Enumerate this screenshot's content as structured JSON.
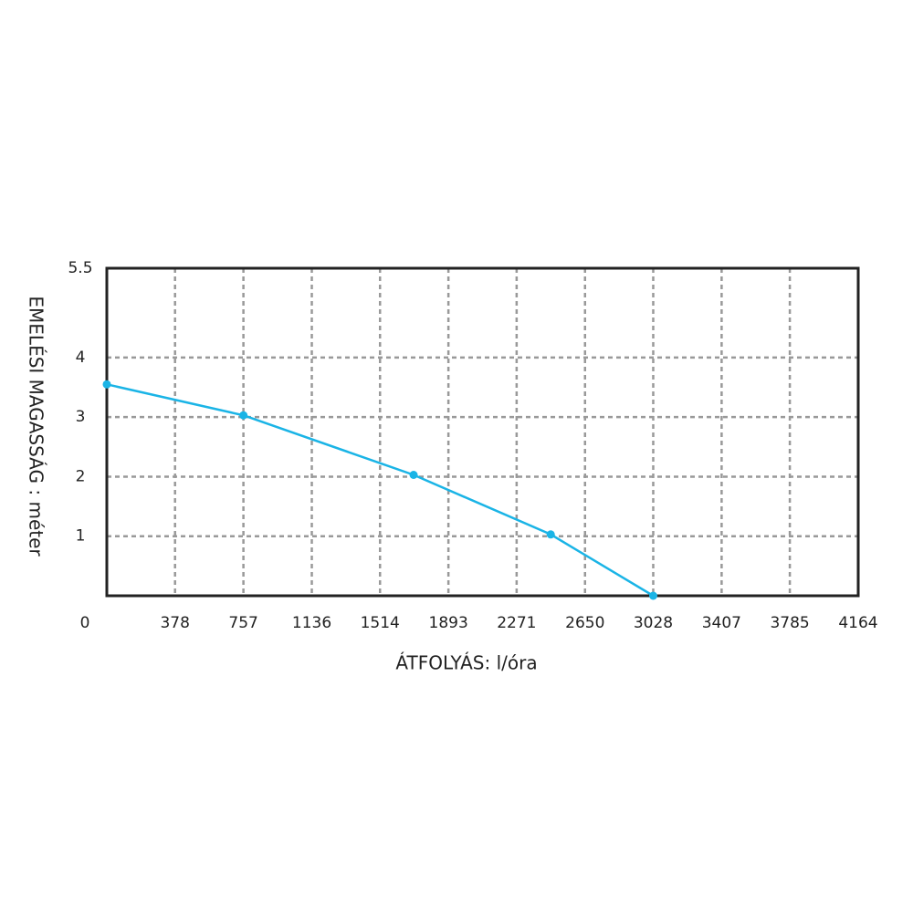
{
  "chart_data": {
    "type": "line",
    "x_label": "ÁTFOLYÁS: l/óra",
    "y_label": "EMELÉSI MAGASSÁG : méter",
    "xlim": [
      0,
      4164
    ],
    "ylim": [
      0,
      5.5
    ],
    "xticks": [
      0,
      378,
      757,
      1136,
      1514,
      1893,
      2271,
      2650,
      3028,
      3407,
      3785,
      4164
    ],
    "yticks": [
      1,
      2,
      3,
      4,
      5.5
    ],
    "grid": true,
    "series": [
      {
        "color": "#1ab4e6",
        "x": [
          0,
          757,
          1700,
          2460,
          3028
        ],
        "values": [
          3.55,
          3.03,
          2.03,
          1.03,
          0
        ]
      }
    ]
  }
}
